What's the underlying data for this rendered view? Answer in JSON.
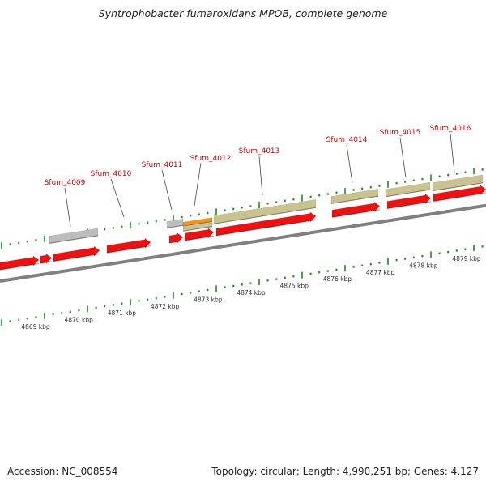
{
  "title": "Syntrophobacter fumaroxidans MPOB, complete genome",
  "footer": {
    "accession": "Accession: NC_008554",
    "stats": "Topology: circular; Length: 4,990,251 bp; Genes: 4,127"
  },
  "colors": {
    "cds": "#ee1111",
    "gene_olive": "#c9c38f",
    "gene_gray": "#bdbdbd",
    "gene_orange": "#f39417",
    "backbone": "#808080",
    "ticks": "#1a8a1a",
    "labels": "#cc0000"
  },
  "scale_labels": [
    "4869 kbp",
    "4870 kbp",
    "4871 kbp",
    "4872 kbp",
    "4873 kbp",
    "4874 kbp",
    "4875 kbp",
    "4876 kbp",
    "4877 kbp",
    "4878 kbp",
    "4879 kbp"
  ],
  "gene_labels": [
    "Sfum_4009",
    "Sfum_4010",
    "Sfum_4011",
    "Sfum_4012",
    "Sfum_4013",
    "Sfum_4014",
    "Sfum_4015",
    "Sfum_4016"
  ]
}
